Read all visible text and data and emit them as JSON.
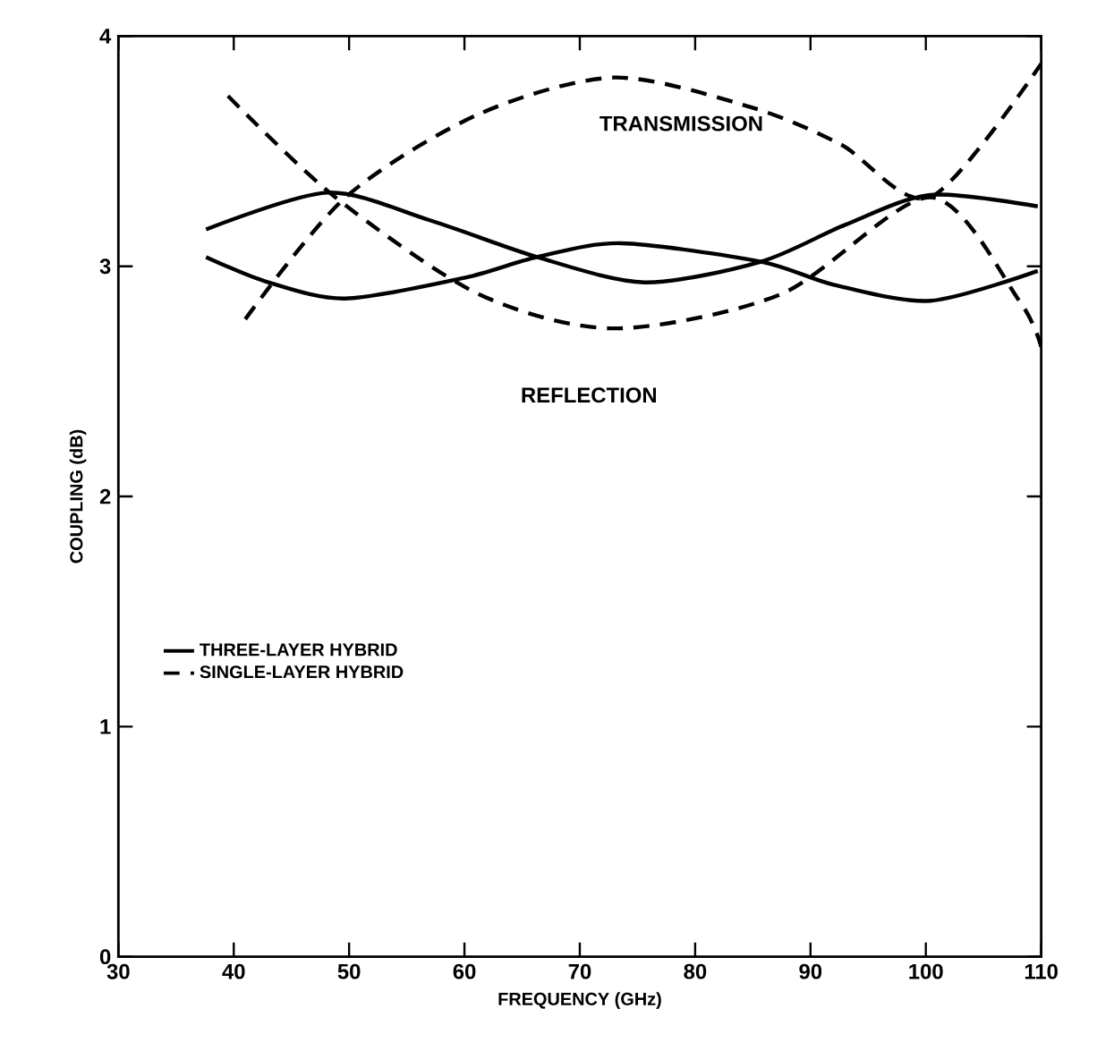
{
  "chart_data": {
    "type": "line",
    "xlabel": "FREQUENCY (GHz)",
    "ylabel": "COUPLING (dB)",
    "xlim": [
      30,
      110
    ],
    "xticks": [
      30,
      40,
      50,
      60,
      70,
      80,
      90,
      100,
      110
    ],
    "ylim": [
      0,
      4
    ],
    "yticks": [
      0,
      1,
      2,
      3,
      4
    ],
    "grid": false,
    "legend": "left",
    "marker": "none",
    "series": [
      {
        "name": "THREE-LAYER HYBRID",
        "color": "#000000",
        "line_style": "solid",
        "x": [
          37.6,
          48.1,
          57,
          66.3,
          75.6,
          85.7,
          93,
          100.4,
          109.7
        ],
        "values": [
          3.16,
          3.32,
          3.2,
          3.04,
          2.93,
          3.02,
          3.18,
          3.31,
          3.26
        ]
      },
      {
        "color": "#000000",
        "line_style": "solid",
        "x": [
          37.6,
          43,
          49.7,
          60,
          66.3,
          73.6,
          85.7,
          92,
          100.4,
          109.7
        ],
        "values": [
          3.04,
          2.93,
          2.86,
          2.95,
          3.04,
          3.1,
          3.02,
          2.92,
          2.85,
          2.98
        ]
      },
      {
        "name": "SINGLE-LAYER HYBRID",
        "color": "#000000",
        "line_style": "dashed",
        "x": [
          41,
          49.7,
          61.2,
          73,
          84.9,
          92.6,
          100.4,
          110
        ],
        "values": [
          2.77,
          3.3,
          3.66,
          3.82,
          3.69,
          3.53,
          3.3,
          3.88
        ]
      },
      {
        "color": "#000000",
        "line_style": "dashed",
        "x": [
          39.5,
          48.8,
          61.2,
          73,
          87.5,
          100.4,
          108.1,
          110
        ],
        "values": [
          3.74,
          3.3,
          2.88,
          2.73,
          2.88,
          3.3,
          2.85,
          2.65
        ]
      }
    ],
    "annotations": [
      "TRANSMISSION",
      "REFLECTION"
    ]
  }
}
